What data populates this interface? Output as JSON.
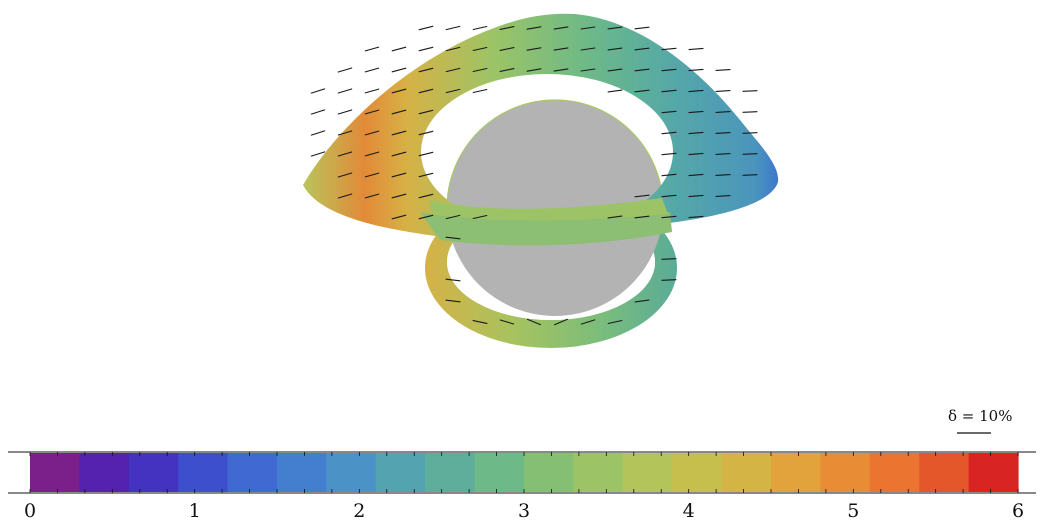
{
  "figure": {
    "image_name": "black-hole-accretion-disk-polarization-map",
    "disk_color_scale": "flux-ratio-colormap"
  },
  "polarization_scale": {
    "label": "δ = 10%"
  },
  "colorbar": {
    "ticks": [
      "0",
      "1",
      "2",
      "3",
      "4",
      "5",
      "6"
    ],
    "colors": [
      "#7b1f8a",
      "#5522b0",
      "#4333c0",
      "#3d4fcc",
      "#4169d2",
      "#447fcf",
      "#4b93c6",
      "#53a3b0",
      "#5fae9c",
      "#6db988",
      "#84bf74",
      "#9cc466",
      "#b2c45a",
      "#c6bf4e",
      "#d5b446",
      "#e2a33d",
      "#e88d35",
      "#ea7430",
      "#e4572b",
      "#d92424"
    ]
  }
}
